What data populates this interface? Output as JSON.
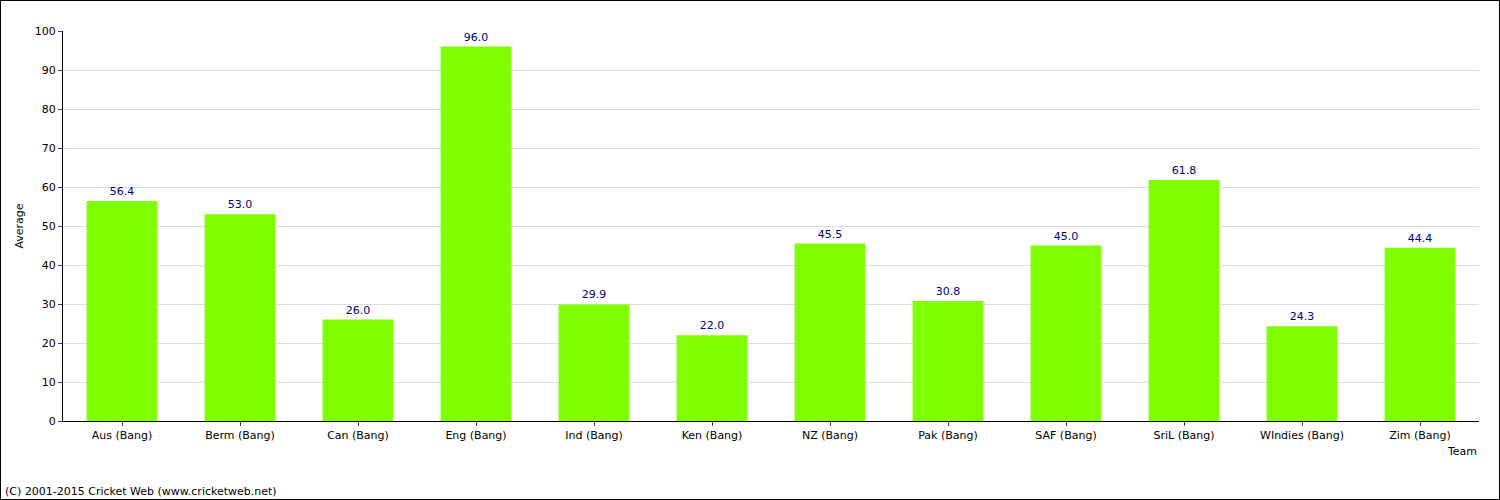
{
  "chart_data": {
    "type": "bar",
    "categories": [
      "Aus (Bang)",
      "Berm (Bang)",
      "Can (Bang)",
      "Eng (Bang)",
      "Ind (Bang)",
      "Ken (Bang)",
      "NZ (Bang)",
      "Pak (Bang)",
      "SAF (Bang)",
      "SriL (Bang)",
      "WIndies (Bang)",
      "Zim (Bang)"
    ],
    "values": [
      56.4,
      53.0,
      26.0,
      96.0,
      29.9,
      22.0,
      45.5,
      30.8,
      45.0,
      61.8,
      24.3,
      44.4
    ],
    "value_labels": [
      "56.4",
      "53.0",
      "26.0",
      "96.0",
      "29.9",
      "22.0",
      "45.5",
      "30.8",
      "45.0",
      "61.8",
      "24.3",
      "44.4"
    ],
    "color": "#7fff00",
    "x_label": "Team",
    "y_label": "Average",
    "ylim": [
      0,
      100
    ],
    "yticks": [
      0,
      10,
      20,
      30,
      40,
      50,
      60,
      70,
      80,
      90,
      100
    ],
    "grid": true,
    "data_labels": true,
    "annotations": [
      "(C) 2001-2015 Cricket Web (www.cricketweb.net)"
    ]
  }
}
